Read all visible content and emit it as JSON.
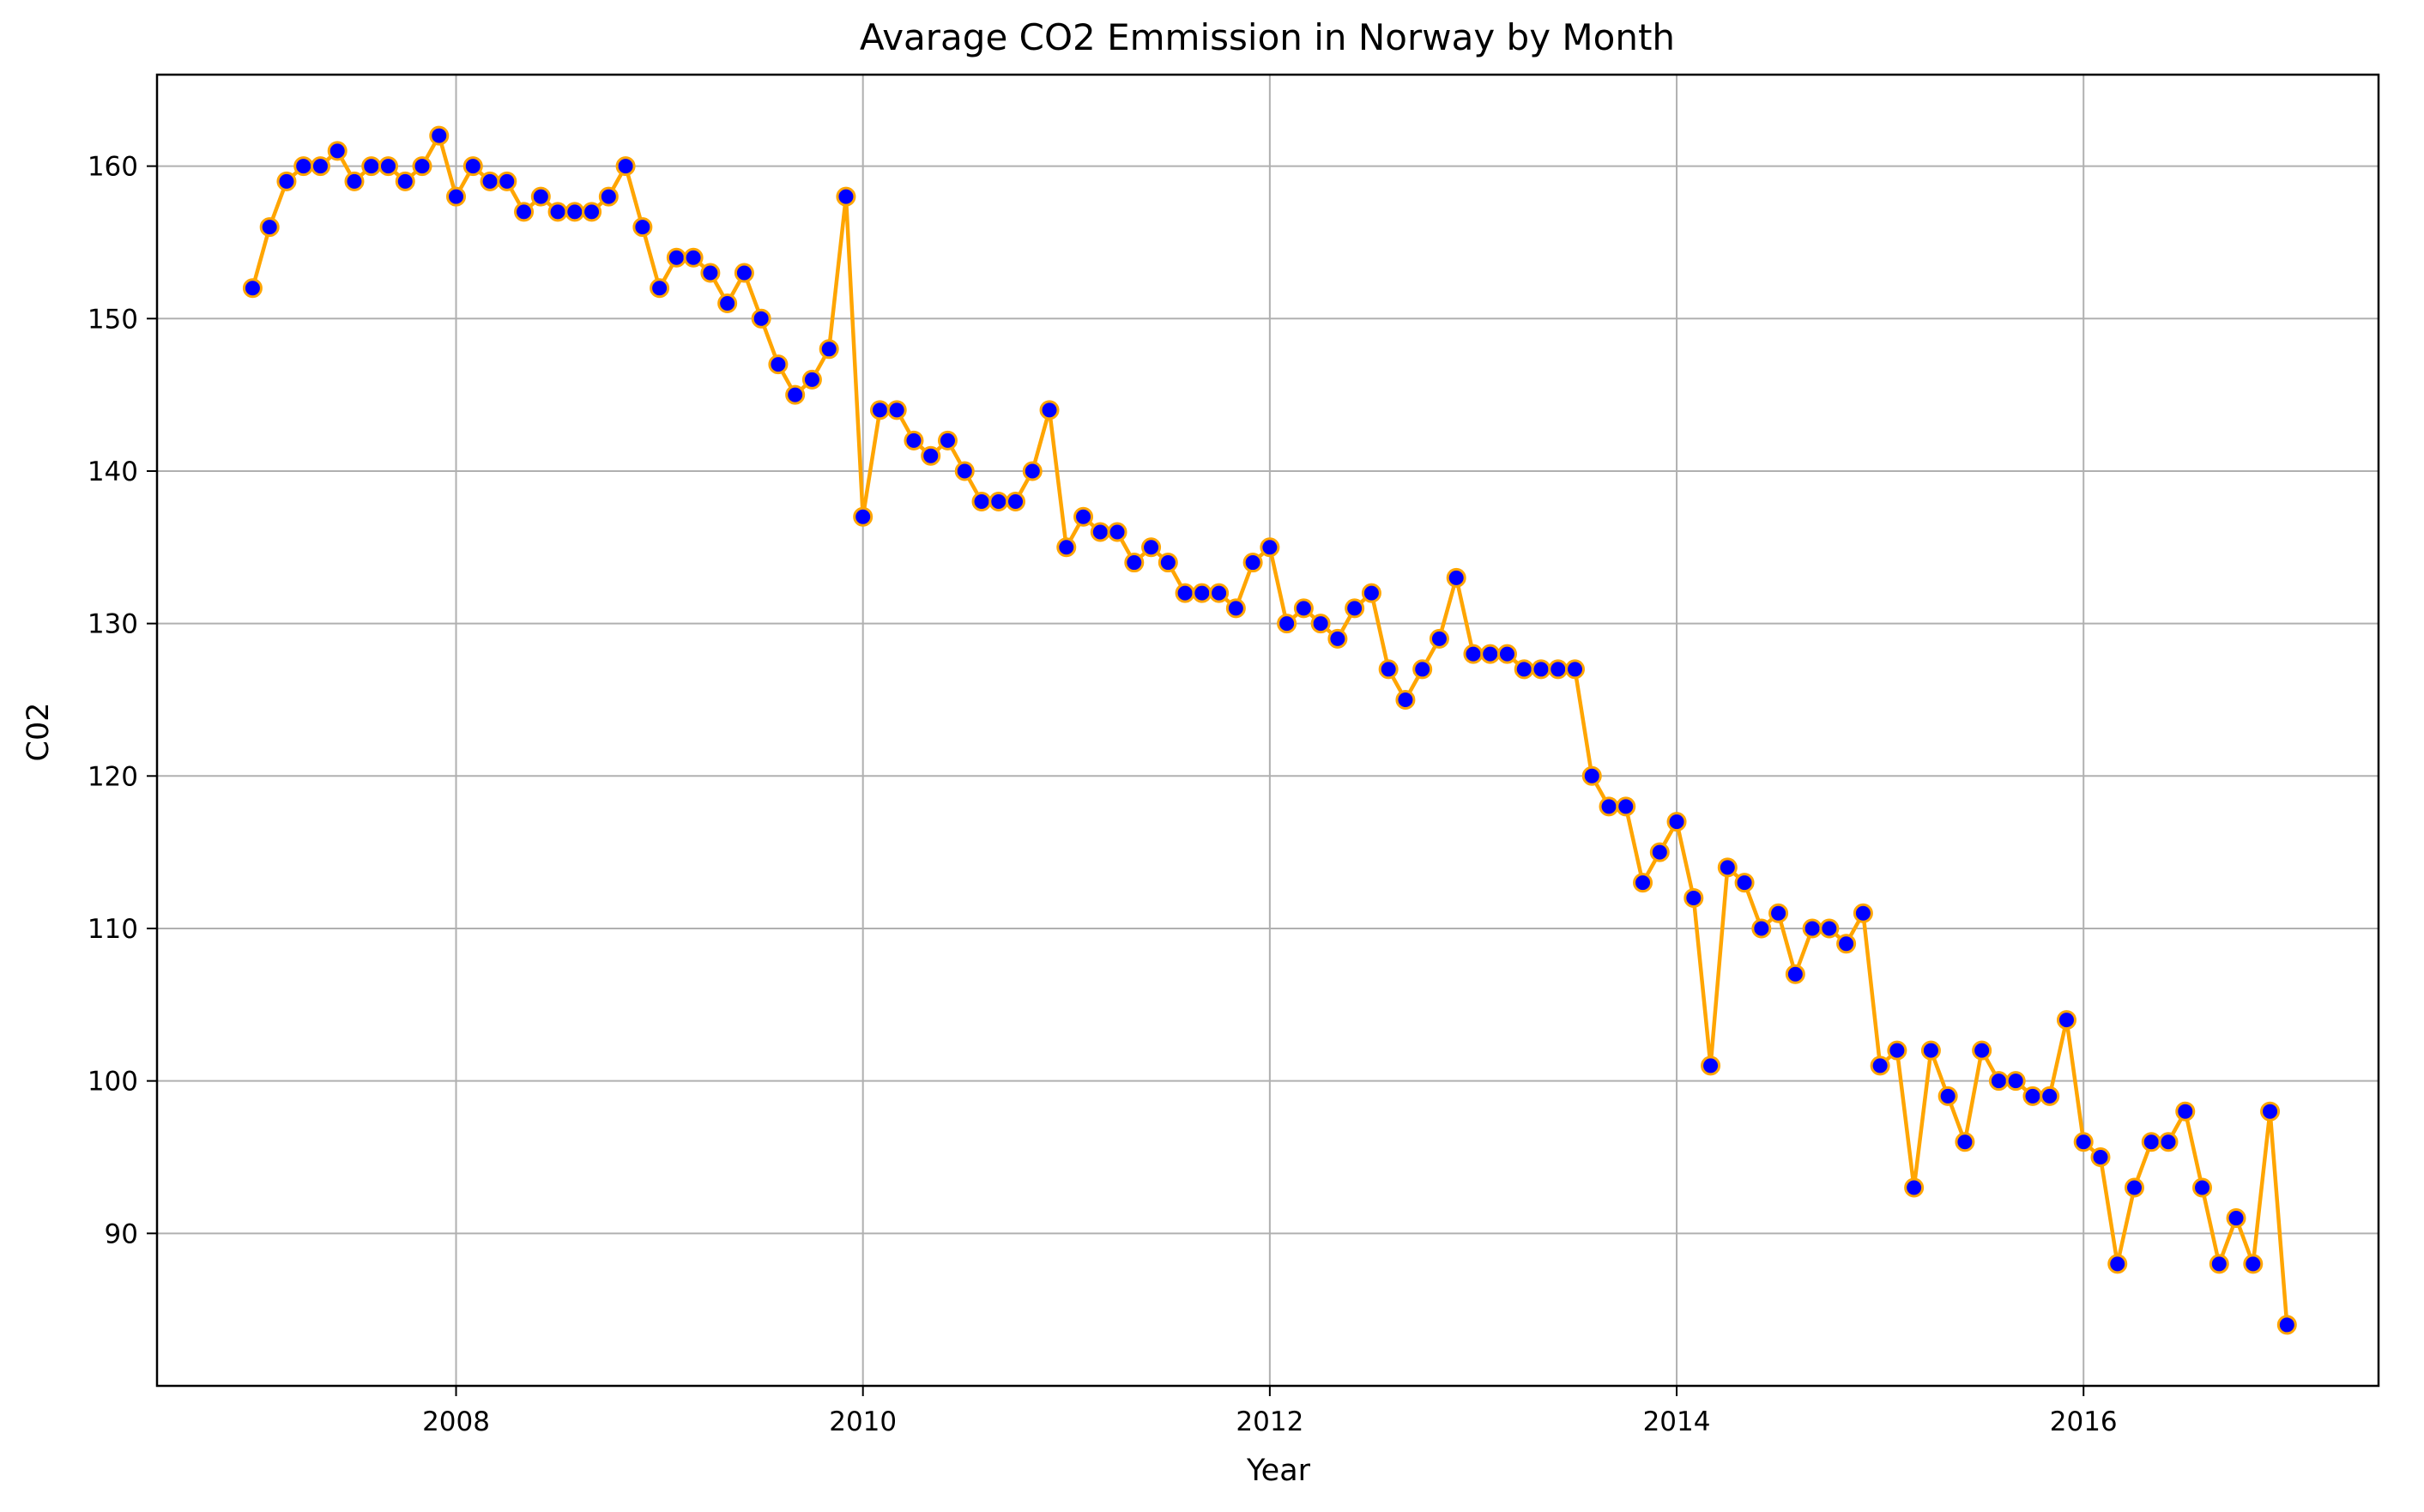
{
  "chart_data": {
    "type": "line",
    "title": "Avarage CO2 Emmission in Norway by Month",
    "xlabel": "Year",
    "ylabel": "C02",
    "x_axis": {
      "unit": "year",
      "min": 2006.53,
      "max": 2017.45,
      "ticks": [
        2008,
        2010,
        2012,
        2014,
        2016
      ],
      "tick_labels": [
        "2008",
        "2010",
        "2012",
        "2014",
        "2016"
      ]
    },
    "y_axis": {
      "min": 80,
      "max": 166,
      "ticks": [
        90,
        100,
        110,
        120,
        130,
        140,
        150,
        160
      ],
      "tick_labels": [
        "90",
        "100",
        "110",
        "120",
        "130",
        "140",
        "150",
        "160"
      ]
    },
    "grid": true,
    "line_color": "#FFA500",
    "marker_color": "#0000FF",
    "marker_edge_color": "#FFA500",
    "series": [
      {
        "start": {
          "year": 2007,
          "month": 1
        },
        "frequency": "monthly",
        "values": [
          152,
          156,
          159,
          160,
          160,
          161,
          159,
          160,
          160,
          159,
          160,
          162,
          158,
          160,
          159,
          159,
          157,
          158,
          157,
          157,
          157,
          158,
          160,
          156,
          152,
          154,
          154,
          153,
          151,
          153,
          150,
          147,
          145,
          146,
          148,
          158,
          137,
          144,
          144,
          142,
          141,
          142,
          140,
          138,
          138,
          138,
          140,
          144,
          135,
          137,
          136,
          136,
          134,
          135,
          134,
          132,
          132,
          132,
          131,
          134,
          135,
          130,
          131,
          130,
          129,
          131,
          132,
          127,
          125,
          127,
          129,
          133,
          128,
          128,
          128,
          127,
          127,
          127,
          127,
          120,
          118,
          118,
          113,
          115,
          117,
          112,
          101,
          114,
          113,
          110,
          111,
          107,
          110,
          110,
          109,
          111,
          101,
          102,
          93,
          102,
          99,
          96,
          102,
          100,
          100,
          99,
          99,
          104,
          96,
          95,
          88,
          93,
          96,
          96,
          98,
          93,
          88,
          91,
          88,
          98,
          84
        ]
      }
    ]
  }
}
